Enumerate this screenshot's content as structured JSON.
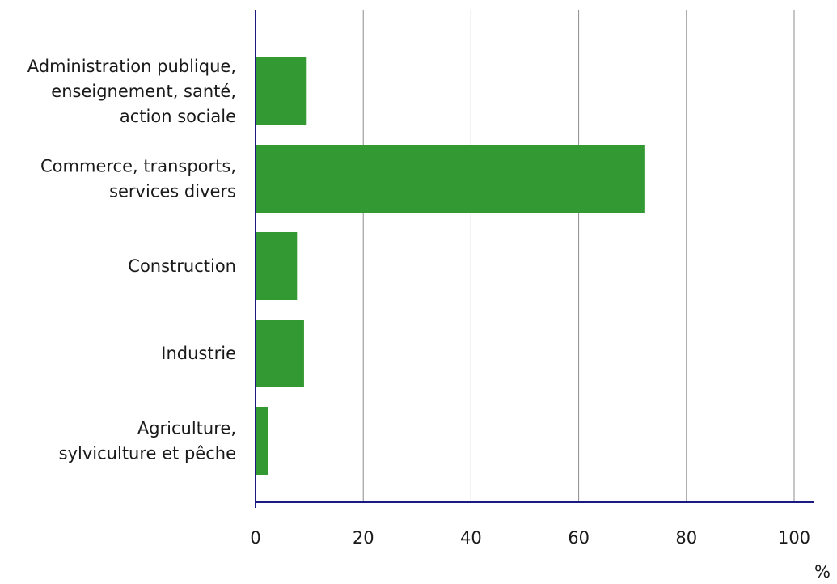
{
  "chart_data": {
    "type": "bar",
    "orientation": "horizontal",
    "categories": [
      [
        "Administration publique,",
        "enseignement, santé,",
        "action sociale"
      ],
      [
        "Commerce, transports,",
        "services divers"
      ],
      [
        "Construction"
      ],
      [
        "Industrie"
      ],
      [
        "Agriculture,",
        "sylviculture et pêche"
      ]
    ],
    "values": [
      9.5,
      72.2,
      7.7,
      9.0,
      2.3
    ],
    "xlim": [
      0,
      100
    ],
    "xticks": [
      0,
      20,
      40,
      60,
      80,
      100
    ],
    "unit": "%",
    "grid": "vertical",
    "colors": {
      "bar": "#339933",
      "axis": "#1a1a80",
      "grid": "#8c8c8c"
    }
  }
}
